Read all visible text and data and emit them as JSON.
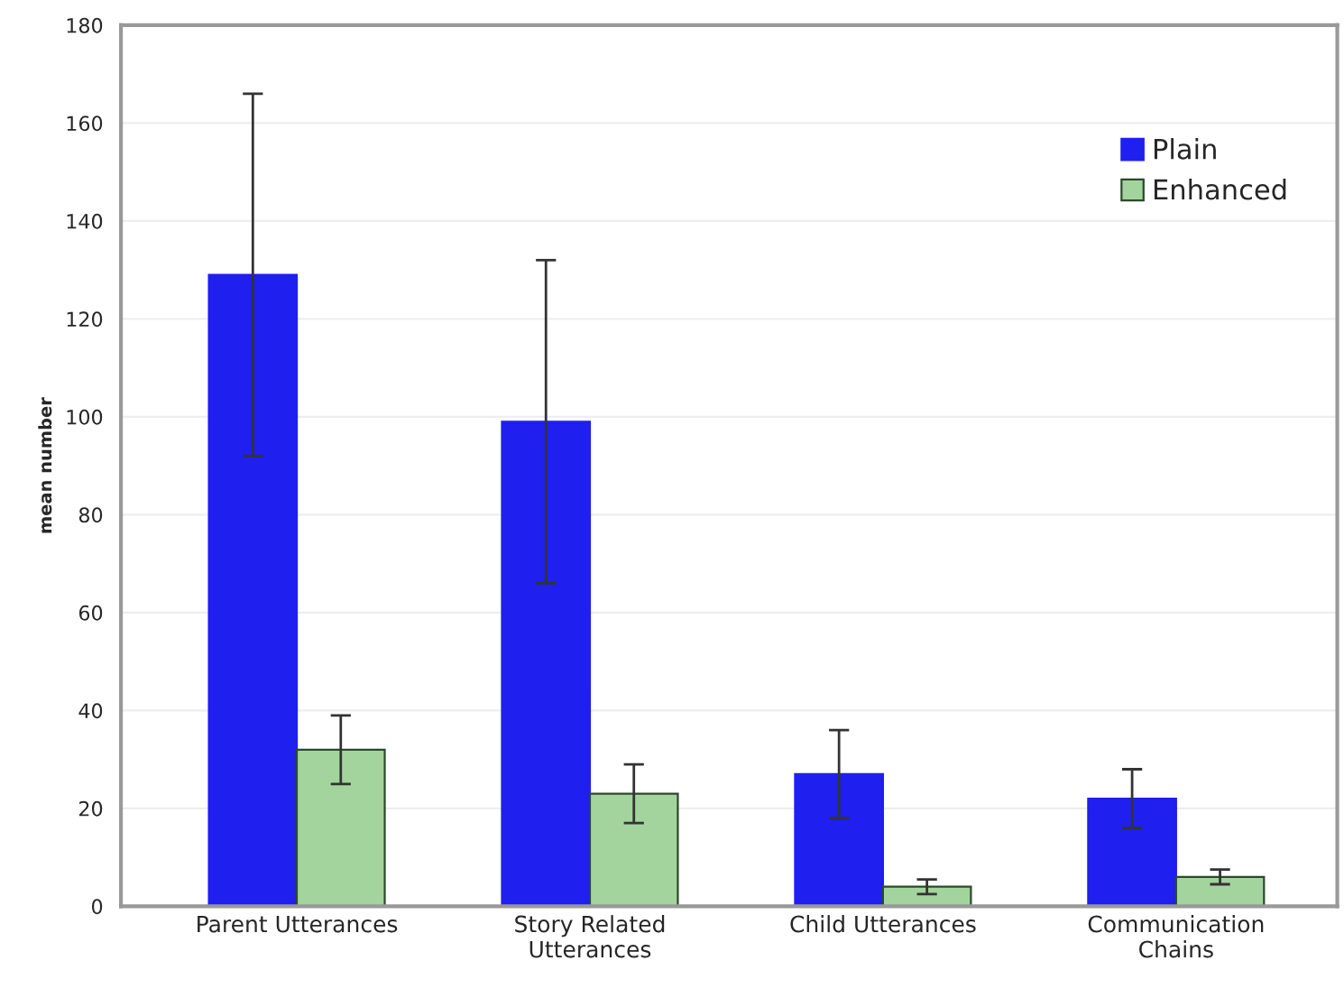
{
  "chart_data": {
    "type": "bar",
    "ylabel": "mean number",
    "categories": [
      "Parent Utterances",
      "Story Related\nUtterances",
      "Child Utterances",
      "Communication\nChains"
    ],
    "series": [
      {
        "name": "Plain",
        "color": "#1f1ff0",
        "values": [
          129,
          99,
          27,
          22
        ],
        "errors": [
          37,
          33,
          9,
          6
        ]
      },
      {
        "name": "Enhanced",
        "color": "#a3d49e",
        "values": [
          32,
          23,
          4,
          6
        ],
        "errors": [
          7,
          6,
          1.5,
          1.5
        ]
      }
    ],
    "ylim": [
      0,
      180
    ],
    "yticks": [
      0,
      20,
      40,
      60,
      80,
      100,
      120,
      140,
      160,
      180
    ],
    "grid": "y",
    "legend": "top right"
  }
}
